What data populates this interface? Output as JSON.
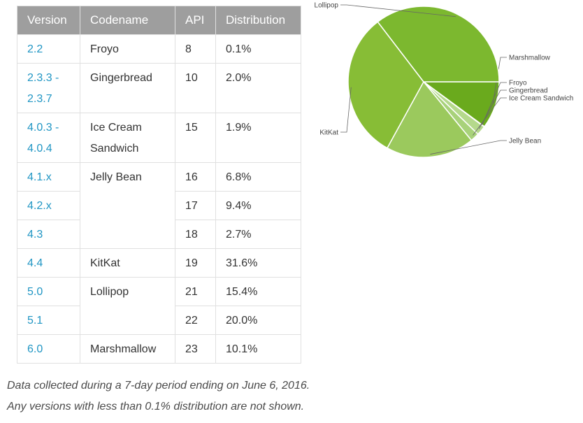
{
  "table": {
    "headers": [
      "Version",
      "Codename",
      "API",
      "Distribution"
    ],
    "rows": [
      {
        "version": "2.2",
        "codename": "Froyo",
        "api": "8",
        "distribution": "0.1%"
      },
      {
        "version": "2.3.3 - 2.3.7",
        "codename": "Gingerbread",
        "api": "10",
        "distribution": "2.0%"
      },
      {
        "version": "4.0.3 - 4.0.4",
        "codename": "Ice Cream Sandwich",
        "api": "15",
        "distribution": "1.9%"
      },
      {
        "version": "4.1.x",
        "codename": "Jelly Bean",
        "api": "16",
        "distribution": "6.8%"
      },
      {
        "version": "4.2.x",
        "codename": "",
        "api": "17",
        "distribution": "9.4%"
      },
      {
        "version": "4.3",
        "codename": "",
        "api": "18",
        "distribution": "2.7%"
      },
      {
        "version": "4.4",
        "codename": "KitKat",
        "api": "19",
        "distribution": "31.6%"
      },
      {
        "version": "5.0",
        "codename": "Lollipop",
        "api": "21",
        "distribution": "15.4%"
      },
      {
        "version": "5.1",
        "codename": "",
        "api": "22",
        "distribution": "20.0%"
      },
      {
        "version": "6.0",
        "codename": "Marshmallow",
        "api": "23",
        "distribution": "10.1%"
      }
    ]
  },
  "notes": {
    "line1": "Data collected during a 7-day period ending on June 6, 2016.",
    "line2": "Any versions with less than 0.1% distribution are not shown."
  },
  "chart_data": {
    "type": "pie",
    "title": "",
    "slices": [
      {
        "label": "Marshmallow",
        "value": 10.1,
        "color": "#6aaa1d"
      },
      {
        "label": "Froyo",
        "value": 0.1,
        "color": "#c4e1a3"
      },
      {
        "label": "Gingerbread",
        "value": 2.0,
        "color": "#b5d98c"
      },
      {
        "label": "Ice Cream Sandwich",
        "value": 1.9,
        "color": "#a8d27a"
      },
      {
        "label": "Jelly Bean",
        "value": 18.9,
        "color": "#9bc95d"
      },
      {
        "label": "KitKat",
        "value": 31.6,
        "color": "#87bd36"
      },
      {
        "label": "Lollipop",
        "value": 35.4,
        "color": "#7cb82f"
      }
    ],
    "start_direction": "east",
    "order": "clockwise"
  }
}
